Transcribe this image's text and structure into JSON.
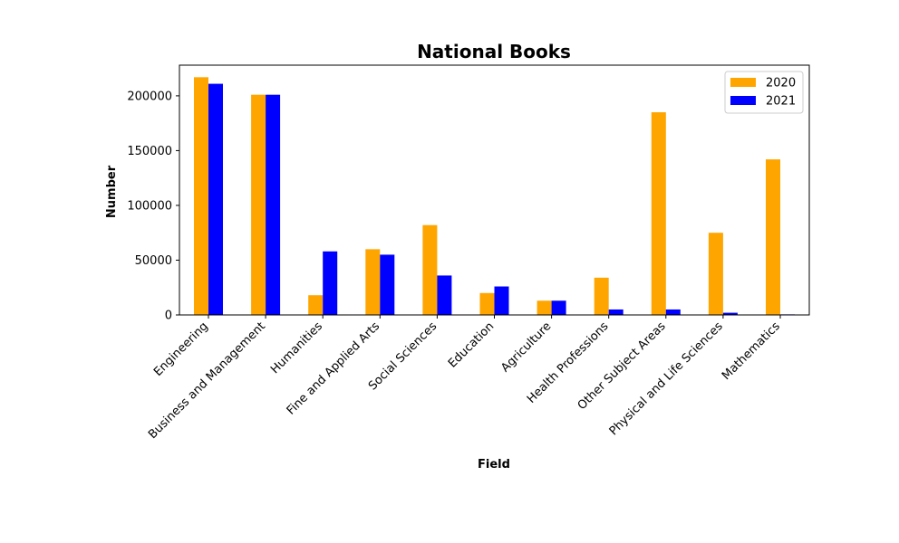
{
  "chart_data": {
    "type": "bar",
    "title": "National Books",
    "xlabel": "Field",
    "ylabel": "Number",
    "categories": [
      "Engineering",
      "Business and Management",
      "Humanities",
      "Fine and Applied Arts",
      "Social Sciences",
      "Education",
      "Agriculture",
      "Health Professions",
      "Other Subject Areas",
      "Physical and Life Sciences",
      "Mathematics"
    ],
    "series": [
      {
        "name": "2020",
        "color": "#ffa500",
        "values": [
          217000,
          201000,
          18000,
          60000,
          82000,
          20000,
          13000,
          34000,
          185000,
          75000,
          142000
        ]
      },
      {
        "name": "2021",
        "color": "#0000ff",
        "values": [
          211000,
          201000,
          58000,
          55000,
          36000,
          26000,
          13000,
          5000,
          5000,
          2000,
          500
        ]
      }
    ],
    "ylim": [
      0,
      228000
    ],
    "yticks": [
      0,
      50000,
      100000,
      150000,
      200000
    ],
    "grid": false,
    "legend_position": "top-right"
  }
}
